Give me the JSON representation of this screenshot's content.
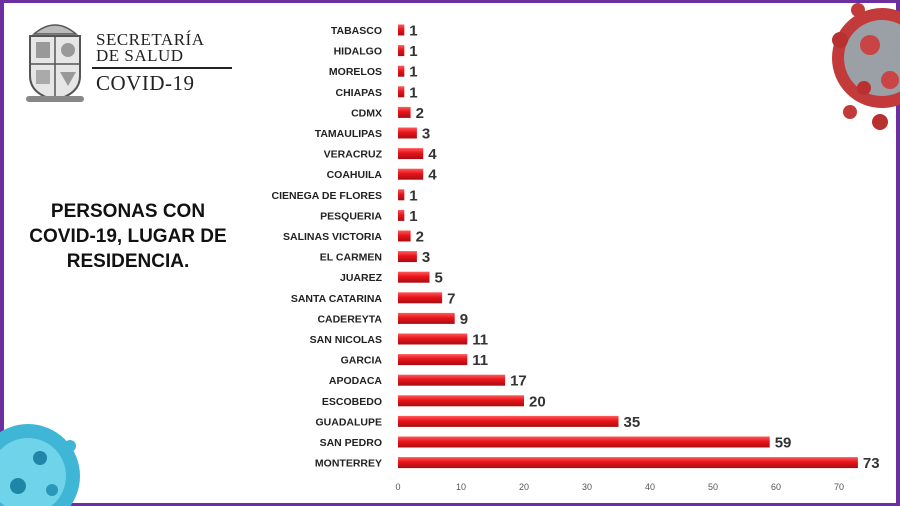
{
  "header": {
    "line1": "SECRETARÍA",
    "line2": "DE SALUD",
    "line3": "COVID-19"
  },
  "side_title": {
    "line1": "PERSONAS CON",
    "line2": "COVID-19, LUGAR DE",
    "line3": "RESIDENCIA."
  },
  "colors": {
    "bar": "#e8141b",
    "frame": "#6b2fa0"
  },
  "chart_data": {
    "type": "bar",
    "orientation": "horizontal",
    "categories": [
      "TABASCO",
      "HIDALGO",
      "MORELOS",
      "CHIAPAS",
      "CDMX",
      "TAMAULIPAS",
      "VERACRUZ",
      "COAHUILA",
      "CIENEGA DE FLORES",
      "PESQUERIA",
      "SALINAS VICTORIA",
      "EL CARMEN",
      "JUAREZ",
      "SANTA CATARINA",
      "CADEREYTA",
      "SAN NICOLAS",
      "GARCIA",
      "APODACA",
      "ESCOBEDO",
      "GUADALUPE",
      "SAN PEDRO",
      "MONTERREY"
    ],
    "values": [
      1,
      1,
      1,
      1,
      2,
      3,
      4,
      4,
      1,
      1,
      2,
      3,
      5,
      7,
      9,
      11,
      11,
      17,
      20,
      35,
      59,
      73
    ],
    "xticks": [
      0,
      10,
      20,
      30,
      40,
      50,
      60,
      70
    ],
    "xlim": [
      0,
      73
    ],
    "grid": false,
    "legend": "none"
  }
}
